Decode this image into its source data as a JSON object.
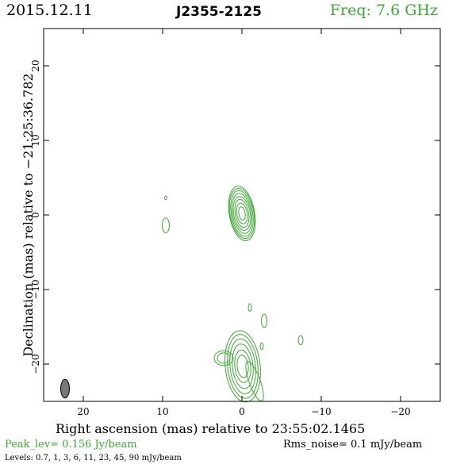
{
  "header": {
    "date": "2015.12.11",
    "source": "J2355-2125",
    "freq": "Freq: 7.6 GHz"
  },
  "footer": {
    "xlabel": "Right ascension (mas) relative to 23:55:02.1465",
    "peak": "Peak_lev=  0.156 Jy/beam",
    "rms": "Rms_noise=   0.1 mJy/beam",
    "levels": "Levels: 0.7,    1,    3,    6,   11,   23,   45,   90 mJy/beam"
  },
  "colors": {
    "contour": "#3fa535",
    "beam": "#777777",
    "axis": "#000000"
  },
  "chart_data": {
    "type": "contour",
    "xlabel": "Right ascension (mas) relative to 23:55:02.1465",
    "ylabel": "Declination (mas) relative to −21:25:36.782",
    "xlim": [
      25,
      -25
    ],
    "ylim": [
      -25,
      25
    ],
    "xticks": [
      20,
      10,
      0,
      -10,
      -20
    ],
    "xtick_labels": [
      "20",
      "10",
      "0",
      "−10",
      "−20"
    ],
    "yticks": [
      -20,
      -10,
      0,
      10,
      20
    ],
    "ytick_labels": [
      "−20",
      "−10",
      "0",
      "10",
      "20"
    ],
    "levels_mJy": [
      0.7,
      1,
      3,
      6,
      11,
      23,
      45,
      90
    ],
    "components": [
      {
        "name": "core",
        "x": 0.0,
        "y": 0.2,
        "rx": [
          1.6,
          1.5,
          1.35,
          1.2,
          1.05,
          0.85,
          0.65,
          0.4
        ],
        "ry": [
          3.7,
          3.4,
          3.1,
          2.7,
          2.3,
          1.9,
          1.4,
          0.9
        ],
        "angle": -10
      },
      {
        "name": "south-jet",
        "x": -0.1,
        "y": -20.3,
        "rx": [
          2.2,
          1.9,
          1.6,
          1.3,
          1.0,
          0.7
        ],
        "ry": [
          4.8,
          4.3,
          3.7,
          3.0,
          2.2,
          1.5
        ],
        "angle": -6
      },
      {
        "name": "south-jet-ext",
        "x": -1.6,
        "y": -22.3,
        "rx": [
          0.7
        ],
        "ry": [
          2.8
        ],
        "angle": -20
      },
      {
        "name": "south-west-lobe",
        "x": 2.3,
        "y": -19.2,
        "rx": [
          1.2,
          0.8
        ],
        "ry": [
          1.0,
          0.7
        ],
        "angle": 0
      },
      {
        "name": "blob-1",
        "x": 9.6,
        "y": -1.4,
        "rx": [
          0.45
        ],
        "ry": [
          1.0
        ],
        "angle": 0
      },
      {
        "name": "blob-2",
        "x": 9.6,
        "y": 2.3,
        "rx": [
          0.15
        ],
        "ry": [
          0.25
        ],
        "angle": 0
      },
      {
        "name": "blob-3",
        "x": -1.0,
        "y": -12.4,
        "rx": [
          0.2
        ],
        "ry": [
          0.5
        ],
        "angle": 0
      },
      {
        "name": "blob-4",
        "x": -2.8,
        "y": -14.2,
        "rx": [
          0.35
        ],
        "ry": [
          0.9
        ],
        "angle": 0
      },
      {
        "name": "blob-5",
        "x": -2.5,
        "y": -17.6,
        "rx": [
          0.2
        ],
        "ry": [
          0.45
        ],
        "angle": 0
      },
      {
        "name": "blob-6",
        "x": -7.4,
        "y": -16.8,
        "rx": [
          0.3
        ],
        "ry": [
          0.6
        ],
        "angle": 0
      }
    ],
    "beam": {
      "x": 22.3,
      "y": -23.3,
      "rx": 0.55,
      "ry": 1.25,
      "angle": 0
    }
  }
}
